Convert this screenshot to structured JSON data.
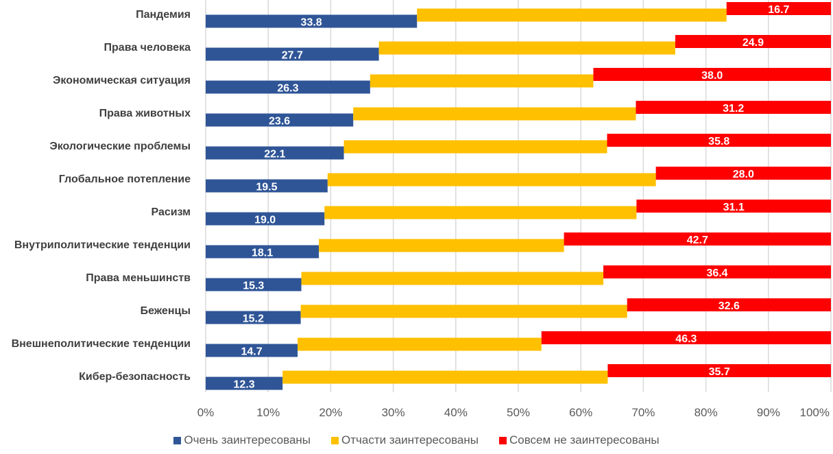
{
  "chart_data": {
    "type": "bar",
    "orientation": "horizontal",
    "stacked": "percent",
    "title": "",
    "xlabel": "",
    "ylabel": "",
    "xlim": [
      0,
      100
    ],
    "grid": true,
    "legend_position": "bottom",
    "x_ticks": [
      "0%",
      "10%",
      "20%",
      "30%",
      "40%",
      "50%",
      "60%",
      "70%",
      "80%",
      "90%",
      "100%"
    ],
    "categories": [
      "Пандемия",
      "Права человека",
      "Экономическая ситуация",
      "Права животных",
      "Экологические проблемы",
      "Глобальное потепление",
      "Расизм",
      "Внутриполитические тенденции",
      "Права меньшинств",
      "Беженцы",
      "Внешнеполитические тенденции",
      "Кибер-безопасность"
    ],
    "series": [
      {
        "name": "Очень заинтересованы",
        "color": "#2f5597",
        "values": [
          33.8,
          27.7,
          26.3,
          23.6,
          22.1,
          19.5,
          19.0,
          18.1,
          15.3,
          15.2,
          14.7,
          12.3
        ],
        "labels": [
          "33.8",
          "27.7",
          "26.3",
          "23.6",
          "22.1",
          "19.5",
          "19.0",
          "18.1",
          "15.3",
          "15.2",
          "14.7",
          "12.3"
        ],
        "show_labels": true
      },
      {
        "name": "Отчасти заинтересованы",
        "color": "#ffc000",
        "values": [
          49.5,
          47.4,
          35.7,
          45.2,
          42.1,
          52.5,
          49.9,
          39.2,
          48.3,
          52.2,
          39.0,
          52.0
        ],
        "show_labels": false
      },
      {
        "name": "Совсем не заинтересованы",
        "color": "#ff0000",
        "values": [
          16.7,
          24.9,
          38.0,
          31.2,
          35.8,
          28.0,
          31.1,
          42.7,
          36.4,
          32.6,
          46.3,
          35.7
        ],
        "labels": [
          "16.7",
          "24.9",
          "38.0",
          "31.2",
          "35.8",
          "28.0",
          "31.1",
          "42.7",
          "36.4",
          "32.6",
          "46.3",
          "35.7"
        ],
        "show_labels": true
      }
    ]
  }
}
